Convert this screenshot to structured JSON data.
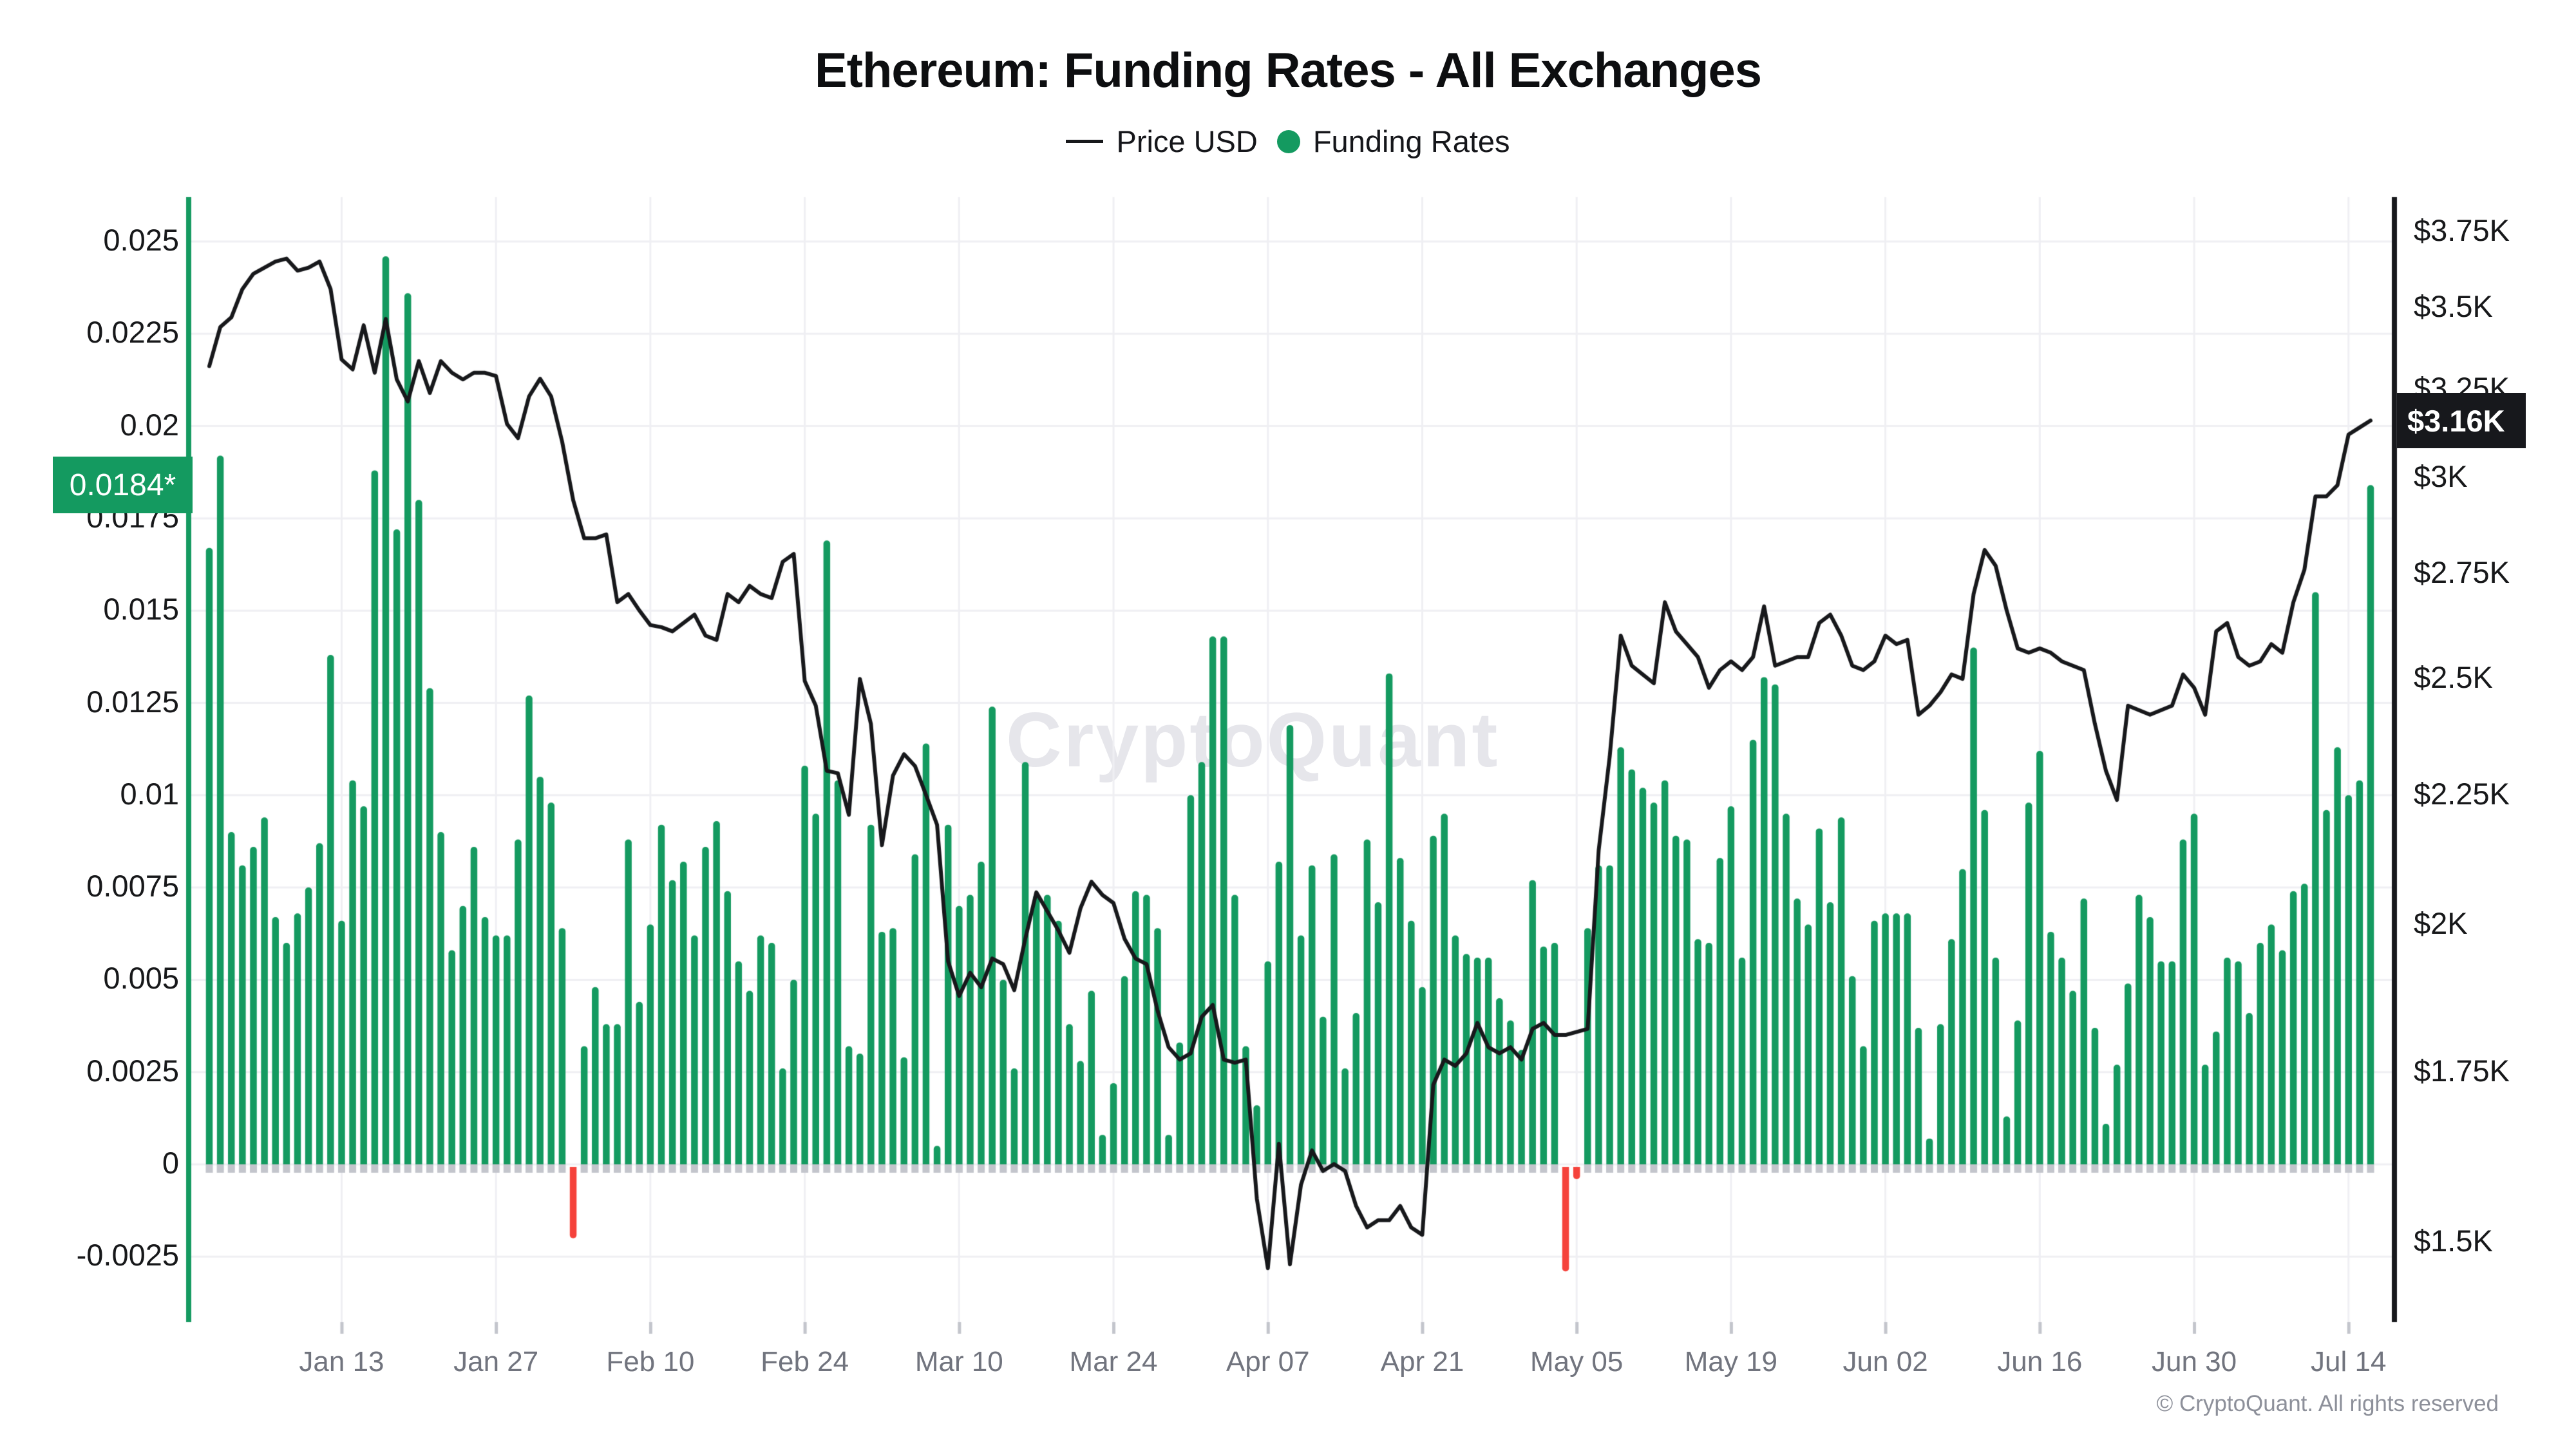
{
  "header": {
    "title": "Ethereum: Funding Rates - All Exchanges"
  },
  "legend": {
    "items": [
      {
        "label": "Price USD",
        "swatch": "line-icon",
        "color": "#17181b"
      },
      {
        "label": "Funding Rates",
        "swatch": "dot-icon",
        "color": "#149a60"
      }
    ]
  },
  "badges": {
    "funding_current": "0.0184*",
    "price_current": "$3.16K"
  },
  "watermark": {
    "text": "CryptoQuant"
  },
  "footer": {
    "copyright": "© CryptoQuant. All rights reserved"
  },
  "chart_data": {
    "type": "bar",
    "subtype": "dual-axis bar+line, daily from Jan 1 to Jul 16",
    "title": "Ethereum: Funding Rates - All Exchanges",
    "series_names": [
      "Funding Rates (bars, left axis)",
      "Price USD (line, right axis)"
    ],
    "left_axis": {
      "label": "Funding Rates",
      "scale": "linear",
      "tick_labels": [
        "0.025",
        "0.0225",
        "0.02",
        "0.0175",
        "0.015",
        "0.0125",
        "0.01",
        "0.0075",
        "0.005",
        "0.0025",
        "0",
        "-0.0025"
      ],
      "grid": true
    },
    "right_axis": {
      "label": "Price USD",
      "scale": "log",
      "tick_labels": [
        "$3.75K",
        "$3.5K",
        "$3.25K",
        "$3K",
        "$2.75K",
        "$2.5K",
        "$2.25K",
        "$2K",
        "$1.75K",
        "$1.5K"
      ],
      "tick_values": [
        3750,
        3500,
        3250,
        3000,
        2750,
        2500,
        2250,
        2000,
        1750,
        1500
      ],
      "min": 1395,
      "max": 3870
    },
    "x_ticks": [
      {
        "label": "Jan 13",
        "i": 12
      },
      {
        "label": "Jan 27",
        "i": 26
      },
      {
        "label": "Feb 10",
        "i": 40
      },
      {
        "label": "Feb 24",
        "i": 54
      },
      {
        "label": "Mar 10",
        "i": 68
      },
      {
        "label": "Mar 24",
        "i": 82
      },
      {
        "label": "Apr 07",
        "i": 96
      },
      {
        "label": "Apr 21",
        "i": 110
      },
      {
        "label": "May 05",
        "i": 124
      },
      {
        "label": "May 19",
        "i": 138
      },
      {
        "label": "Jun 02",
        "i": 152
      },
      {
        "label": "Jun 16",
        "i": 166
      },
      {
        "label": "Jun 30",
        "i": 180
      },
      {
        "label": "Jul 14",
        "i": 194
      }
    ],
    "funding_rates": [
      0.0167,
      0.0192,
      0.009,
      0.0081,
      0.0086,
      0.0094,
      0.0067,
      0.006,
      0.0068,
      0.0075,
      0.0087,
      0.0138,
      0.0066,
      0.0104,
      0.0097,
      0.0188,
      0.0246,
      0.0172,
      0.0236,
      0.018,
      0.0129,
      0.009,
      0.0058,
      0.007,
      0.0086,
      0.0067,
      0.0062,
      0.0062,
      0.0088,
      0.0127,
      0.0105,
      0.0098,
      0.0064,
      -0.002,
      0.0032,
      0.0048,
      0.0038,
      0.0038,
      0.0088,
      0.0044,
      0.0065,
      0.0092,
      0.0077,
      0.0082,
      0.0062,
      0.0086,
      0.0093,
      0.0074,
      0.0055,
      0.0047,
      0.0062,
      0.006,
      0.0026,
      0.005,
      0.0108,
      0.0095,
      0.0169,
      0.0104,
      0.0032,
      0.003,
      0.0092,
      0.0063,
      0.0064,
      0.0029,
      0.0084,
      0.0114,
      0.0005,
      0.0092,
      0.007,
      0.0073,
      0.0082,
      0.0124,
      0.005,
      0.0026,
      0.0109,
      0.0073,
      0.0073,
      0.0066,
      0.0038,
      0.0028,
      0.0047,
      0.0008,
      0.0022,
      0.0051,
      0.0074,
      0.0073,
      0.0064,
      0.0008,
      0.0033,
      0.01,
      0.0109,
      0.0143,
      0.0143,
      0.0073,
      0.0032,
      0.0016,
      0.0055,
      0.0082,
      0.0119,
      0.0062,
      0.0081,
      0.004,
      0.0084,
      0.0026,
      0.0041,
      0.0088,
      0.0071,
      0.0133,
      0.0083,
      0.0066,
      0.0048,
      0.0089,
      0.0095,
      0.0062,
      0.0057,
      0.0056,
      0.0056,
      0.0045,
      0.0039,
      0.0031,
      0.0077,
      0.0059,
      0.006,
      -0.0029,
      -0.0004,
      0.0064,
      0.0081,
      0.0081,
      0.0113,
      0.0107,
      0.0102,
      0.0098,
      0.0104,
      0.0089,
      0.0088,
      0.0061,
      0.006,
      0.0083,
      0.0097,
      0.0056,
      0.0115,
      0.0132,
      0.013,
      0.0095,
      0.0072,
      0.0065,
      0.0091,
      0.0071,
      0.0094,
      0.0051,
      0.0032,
      0.0066,
      0.0068,
      0.0068,
      0.0068,
      0.0037,
      0.0007,
      0.0038,
      0.0061,
      0.008,
      0.014,
      0.0096,
      0.0056,
      0.0013,
      0.0039,
      0.0098,
      0.0112,
      0.0063,
      0.0056,
      0.0047,
      0.0072,
      0.0037,
      0.0011,
      0.0027,
      0.0049,
      0.0073,
      0.0067,
      0.0055,
      0.0055,
      0.0088,
      0.0095,
      0.0027,
      0.0036,
      0.0056,
      0.0055,
      0.0041,
      0.006,
      0.0065,
      0.0058,
      0.0074,
      0.0076,
      0.0155,
      0.0096,
      0.0113,
      0.01,
      0.0104,
      0.0184
    ],
    "price_usd": [
      3320,
      3440,
      3470,
      3560,
      3610,
      3630,
      3650,
      3660,
      3620,
      3630,
      3650,
      3560,
      3340,
      3310,
      3445,
      3300,
      3465,
      3280,
      3215,
      3335,
      3240,
      3335,
      3300,
      3280,
      3300,
      3300,
      3290,
      3150,
      3110,
      3230,
      3282,
      3230,
      3100,
      2940,
      2840,
      2840,
      2850,
      2680,
      2700,
      2660,
      2625,
      2620,
      2610,
      2630,
      2650,
      2600,
      2590,
      2700,
      2680,
      2720,
      2700,
      2690,
      2780,
      2800,
      2495,
      2440,
      2300,
      2295,
      2210,
      2500,
      2400,
      2150,
      2290,
      2335,
      2310,
      2250,
      2190,
      1935,
      1875,
      1915,
      1890,
      1940,
      1930,
      1885,
      1975,
      2060,
      2025,
      1990,
      1950,
      2030,
      2080,
      2055,
      2040,
      1975,
      1940,
      1930,
      1850,
      1790,
      1770,
      1780,
      1840,
      1860,
      1770,
      1765,
      1770,
      1560,
      1465,
      1640,
      1470,
      1580,
      1630,
      1600,
      1610,
      1600,
      1550,
      1520,
      1530,
      1530,
      1550,
      1520,
      1510,
      1730,
      1770,
      1760,
      1780,
      1830,
      1790,
      1780,
      1790,
      1770,
      1820,
      1830,
      1810,
      1810,
      1815,
      1820,
      2140,
      2330,
      2600,
      2530,
      2510,
      2490,
      2680,
      2610,
      2580,
      2550,
      2480,
      2520,
      2540,
      2520,
      2550,
      2670,
      2530,
      2540,
      2550,
      2550,
      2630,
      2650,
      2600,
      2530,
      2520,
      2540,
      2600,
      2580,
      2590,
      2420,
      2440,
      2470,
      2510,
      2500,
      2700,
      2810,
      2770,
      2660,
      2570,
      2560,
      2570,
      2560,
      2540,
      2530,
      2520,
      2400,
      2300,
      2240,
      2440,
      2430,
      2420,
      2430,
      2440,
      2510,
      2480,
      2420,
      2610,
      2630,
      2550,
      2530,
      2540,
      2580,
      2560,
      2680,
      2760,
      2950,
      2950,
      2980,
      3120,
      3140,
      3160
    ],
    "colors": {
      "bar_positive": "#149a60",
      "bar_negative": "#f5423b",
      "price_line": "#17181b",
      "grid": "#efeff3",
      "zero_line": "#ededf1",
      "tick_stub": "#c3c5cc",
      "left_axis_line": "#149a60",
      "right_axis_line": "#17181c"
    }
  }
}
